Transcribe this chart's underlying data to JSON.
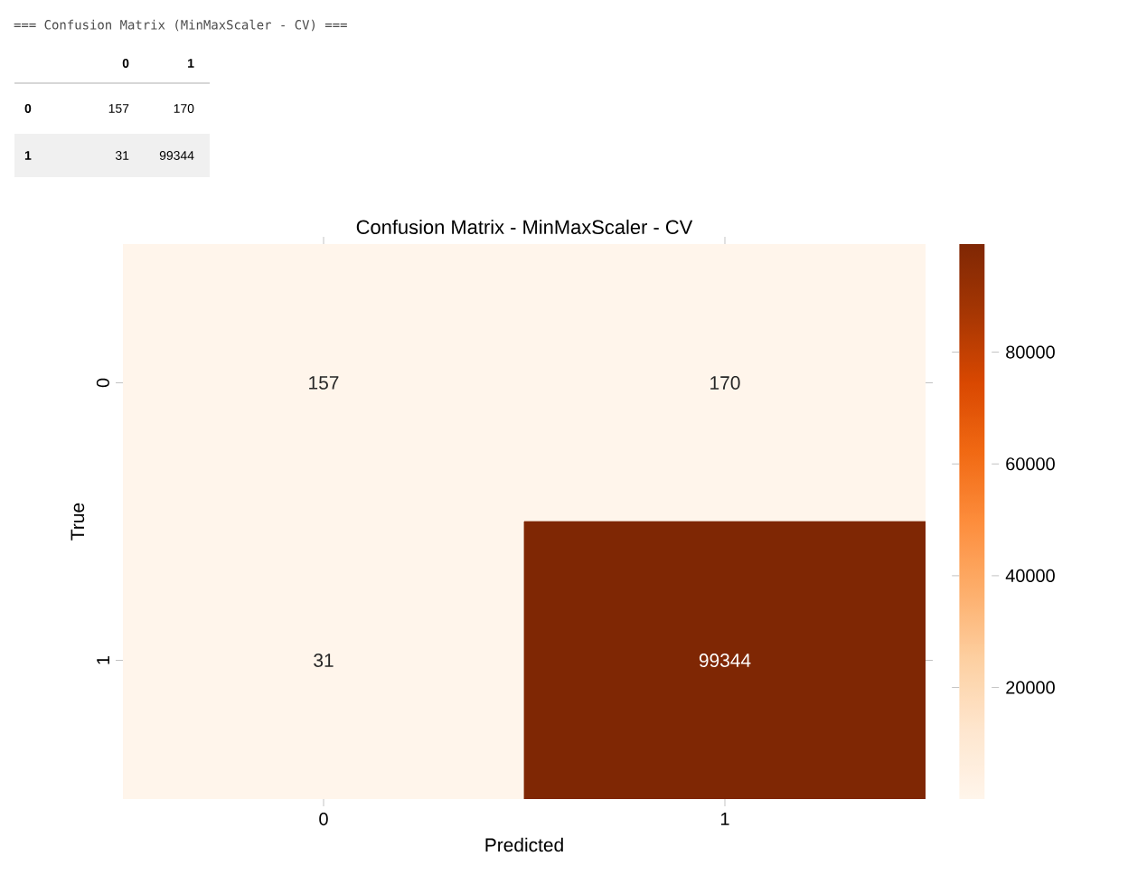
{
  "chart_data": {
    "type": "heatmap",
    "title": "Confusion Matrix - MinMaxScaler - CV",
    "annotations": [
      "=== Confusion Matrix (MinMaxScaler - CV) ===",
      "157",
      "170",
      "31",
      "99344"
    ],
    "xlabel": "Predicted",
    "ylabel": "True",
    "categories": [
      "0",
      "1"
    ],
    "y_categories": [
      "0",
      "1"
    ],
    "cells": [
      [
        157,
        170
      ],
      [
        31,
        99344
      ]
    ],
    "clim": [
      31,
      99344
    ],
    "cticks": [
      20000,
      40000,
      60000,
      80000
    ],
    "data_labels": true
  }
}
